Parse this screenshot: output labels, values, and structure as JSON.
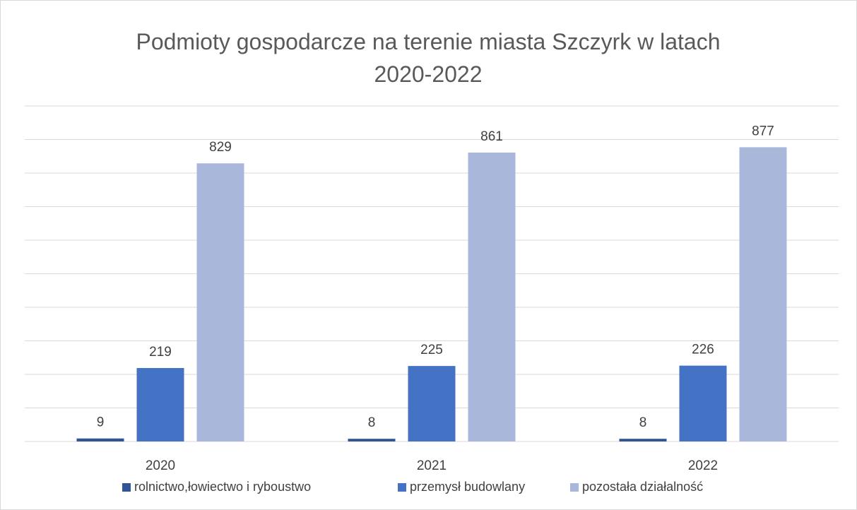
{
  "chart_data": {
    "type": "bar",
    "title": "Podmioty gospodarcze na terenie miasta Szczyrk w latach 2020-2022",
    "categories": [
      "2020",
      "2021",
      "2022"
    ],
    "series": [
      {
        "name": "rolnictwo,łowiectwo i ryboustwo",
        "color": "#2f5597",
        "values": [
          9,
          8,
          8
        ]
      },
      {
        "name": "przemysł budowlany",
        "color": "#4472c4",
        "values": [
          219,
          225,
          226
        ]
      },
      {
        "name": "pozostała działalność",
        "color": "#a9b7db",
        "values": [
          829,
          861,
          877
        ]
      }
    ],
    "ylim": [
      0,
      1000
    ],
    "yticks": [
      0,
      100,
      200,
      300,
      400,
      500,
      600,
      700,
      800,
      900,
      1000
    ],
    "grid": true,
    "legend": "bottom"
  }
}
